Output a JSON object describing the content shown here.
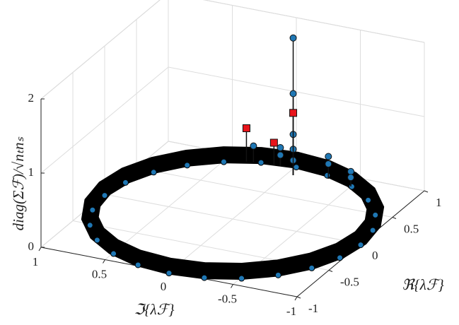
{
  "chart_data": {
    "type": "scatter3d",
    "xlabel": "ℑ{λℱ}",
    "ylabel": "ℜ{λℱ}",
    "zlabel": "diag(Σℱ)/√nₜnₛ",
    "xlim": [
      -1,
      1
    ],
    "ylim": [
      -1,
      1
    ],
    "zlim": [
      0,
      2
    ],
    "xticks": [
      -1,
      -0.5,
      0,
      0.5,
      1
    ],
    "yticks": [
      -1,
      -0.5,
      0,
      0.5,
      1
    ],
    "zticks": [
      0,
      1,
      2
    ],
    "grid": true,
    "stems": true,
    "ring": {
      "color": "#1f77b4",
      "edge": "#000000",
      "x": [
        0,
        0.259,
        0.5,
        0.707,
        0.866,
        0.966,
        1,
        0.966,
        0.866,
        0.707,
        0.5,
        0.259,
        0,
        -0.259,
        -0.5,
        -0.707,
        -0.866,
        -0.966,
        -1,
        -0.966,
        -0.866,
        -0.707,
        -0.5,
        -0.259
      ],
      "y": [
        1,
        0.966,
        0.866,
        0.707,
        0.5,
        0.259,
        0,
        -0.259,
        -0.5,
        -0.707,
        -0.866,
        -0.966,
        -1,
        -0.966,
        -0.866,
        -0.707,
        -0.5,
        -0.259,
        0,
        0.259,
        0.5,
        0.707,
        0.866,
        0.966
      ],
      "z": [
        0.08,
        0.08,
        0.08,
        0.08,
        0.08,
        0.08,
        0.08,
        0.08,
        0.08,
        0.08,
        0.08,
        0.08,
        0.08,
        0.08,
        0.08,
        0.08,
        0.08,
        0.08,
        0.08,
        0.08,
        0.08,
        0.08,
        0.08,
        0.08
      ]
    },
    "series": [
      {
        "marker": "circle",
        "color": "#1f77b4",
        "x": [
          -0.05,
          -0.05,
          -0.05,
          -0.05,
          -0.05,
          0.1,
          0.1,
          -0.3,
          -0.3,
          -0.5,
          -0.5,
          0.3
        ],
        "y": [
          0.85,
          0.85,
          0.85,
          0.85,
          0.85,
          0.95,
          0.95,
          0.9,
          0.9,
          0.85,
          0.85,
          0.93
        ],
        "z": [
          1.85,
          1.1,
          0.55,
          0.35,
          0.2,
          0.25,
          0.15,
          0.3,
          0.2,
          0.2,
          0.12,
          0.22
        ]
      },
      {
        "marker": "square",
        "color": "#e8141b",
        "x": [
          0.35,
          0.15,
          -0.05
        ],
        "y": [
          0.92,
          0.95,
          0.85
        ],
        "z": [
          0.45,
          0.3,
          0.84
        ]
      }
    ]
  }
}
